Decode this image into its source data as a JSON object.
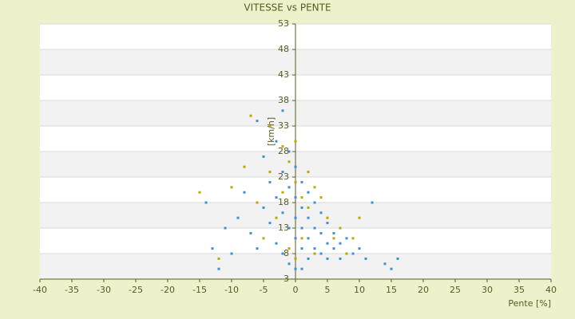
{
  "chart_data": {
    "type": "scatter",
    "title": "VITESSE vs PENTE",
    "x_label": "Pente [%]",
    "y_label": "[km/h]",
    "xlim": [
      -40,
      40
    ],
    "xticks": [
      -40,
      -35,
      -30,
      -25,
      -20,
      -15,
      -10,
      -5,
      0,
      5,
      10,
      15,
      20,
      25,
      30,
      35,
      40
    ],
    "ylim": [
      3,
      53
    ],
    "yticks": [
      3,
      8,
      13,
      18,
      23,
      28,
      33,
      38,
      43,
      48,
      53
    ],
    "grid": true,
    "series": [
      {
        "color": "#3d8fd6",
        "x": [
          -13,
          -12,
          -11,
          -10,
          -9,
          -8,
          -7,
          -6,
          -5,
          -5,
          -4,
          -4,
          -3,
          -3,
          -3,
          -2,
          -2,
          -2,
          -1,
          -1,
          -1,
          -1,
          0,
          0,
          0,
          0,
          0,
          1,
          1,
          1,
          1,
          1,
          2,
          2,
          2,
          2,
          3,
          3,
          3,
          4,
          4,
          4,
          5,
          5,
          5,
          6,
          6,
          7,
          7,
          8,
          9,
          10,
          11,
          12,
          14,
          15,
          16,
          -14,
          -6,
          -2
        ],
        "values": [
          9,
          5,
          13,
          8,
          15,
          20,
          12,
          9,
          27,
          17,
          22,
          14,
          30,
          19,
          10,
          24,
          16,
          8,
          28,
          21,
          13,
          6,
          25,
          19,
          15,
          11,
          5,
          22,
          17,
          13,
          9,
          5,
          20,
          15,
          11,
          7,
          18,
          13,
          9,
          16,
          12,
          8,
          14,
          10,
          7,
          12,
          9,
          10,
          7,
          11,
          8,
          9,
          7,
          18,
          6,
          5,
          7,
          18,
          34,
          36
        ]
      },
      {
        "color": "#b8a800",
        "x": [
          -15,
          -12,
          -10,
          -8,
          -7,
          -6,
          -5,
          -4,
          -4,
          -3,
          -2,
          -2,
          -1,
          -1,
          0,
          0,
          0,
          1,
          1,
          2,
          2,
          3,
          3,
          4,
          5,
          6,
          7,
          8,
          9,
          10
        ],
        "values": [
          20,
          7,
          21,
          25,
          35,
          18,
          11,
          33,
          24,
          15,
          29,
          20,
          26,
          9,
          30,
          22,
          7,
          19,
          11,
          24,
          17,
          21,
          8,
          19,
          15,
          11,
          13,
          8,
          11,
          15
        ]
      }
    ]
  }
}
